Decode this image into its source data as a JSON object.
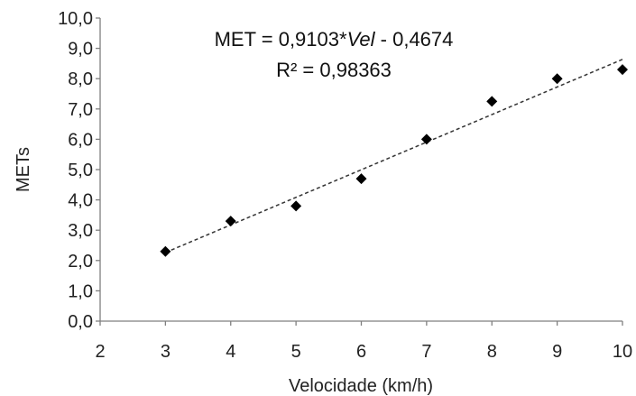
{
  "chart_data": {
    "type": "scatter",
    "xlabel": "Velocidade (km/h)",
    "ylabel": "METs",
    "xlim": [
      2,
      10
    ],
    "ylim": [
      0,
      10
    ],
    "x_ticks": [
      "2",
      "3",
      "4",
      "5",
      "6",
      "7",
      "8",
      "9",
      "10"
    ],
    "y_ticks": [
      "0,0",
      "1,0",
      "2,0",
      "3,0",
      "4,0",
      "5,0",
      "6,0",
      "7,0",
      "8,0",
      "9,0",
      "10,0"
    ],
    "grid": false,
    "legend": false,
    "marker": "diamond",
    "series": [
      {
        "x": [
          3,
          4,
          5,
          6,
          7,
          8,
          9,
          10
        ],
        "y": [
          2.3,
          3.3,
          3.8,
          4.7,
          6.0,
          7.25,
          8.0,
          8.3
        ]
      }
    ],
    "trendline": {
      "style": "dashed",
      "slope": 0.9103,
      "intercept": -0.4674,
      "x_range": [
        3,
        10
      ]
    },
    "annotation": {
      "equation_prefix": "MET = 0,9103*",
      "equation_var": "Vel",
      "equation_suffix": " - 0,4674",
      "r2": "R² = 0,98363"
    }
  }
}
